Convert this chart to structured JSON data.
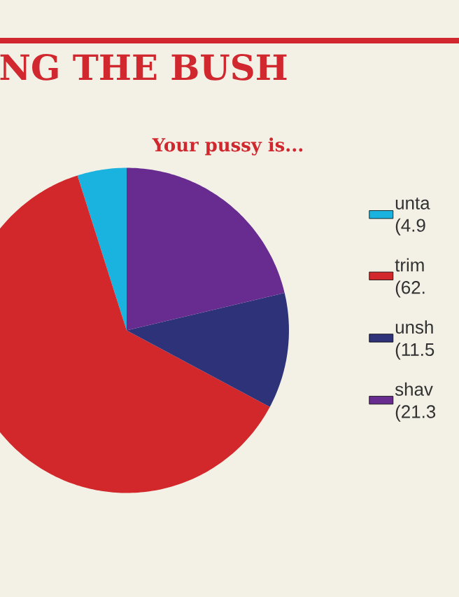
{
  "chart_data": {
    "type": "pie",
    "title": "NG THE BUSH",
    "subtitle": "Your pussy is...",
    "categories": [
      "unta",
      "trim",
      "unsh",
      "shav"
    ],
    "values": [
      4.9,
      62.3,
      11.5,
      21.3
    ],
    "value_labels": [
      "(4.9",
      "(62.",
      "(11.5",
      "(21.3"
    ],
    "colors": [
      "#1ab3e0",
      "#d2272b",
      "#2e3278",
      "#682c91"
    ],
    "legend": "right"
  }
}
